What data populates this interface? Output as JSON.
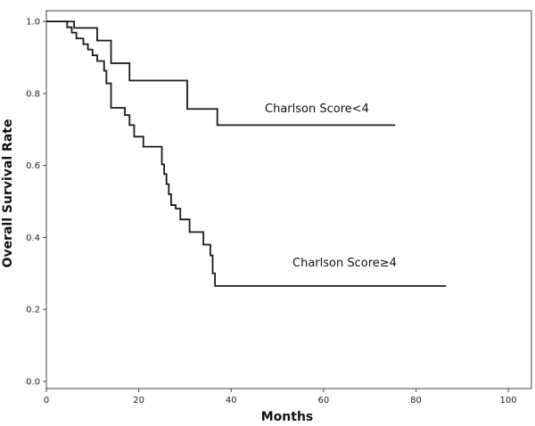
{
  "chart_data": {
    "type": "line",
    "step": true,
    "xlabel": "Months",
    "ylabel": "Overall Survival Rate",
    "xlim": [
      0,
      105
    ],
    "ylim": [
      -0.02,
      1.03
    ],
    "xticks": [
      0,
      20,
      40,
      60,
      80,
      100
    ],
    "xtick_labels": [
      "0",
      "20",
      "40",
      "60",
      "80",
      "100"
    ],
    "yticks": [
      0.0,
      0.2,
      0.4,
      0.6,
      0.8,
      1.0
    ],
    "ytick_labels": [
      "0.0",
      "0.2",
      "0.4",
      "0.6",
      "0.8",
      "1.0"
    ],
    "grid": false,
    "line_color": "#1a1a1a",
    "series": [
      {
        "name": "Charlson Score<4",
        "x": [
          0,
          6,
          11,
          14,
          18,
          30.5,
          37,
          75.5
        ],
        "y": [
          1.0,
          0.982,
          0.947,
          0.884,
          0.836,
          0.757,
          0.712,
          0.712
        ]
      },
      {
        "name": "Charlson Score≥4",
        "x": [
          0,
          4.5,
          5.5,
          6.5,
          8,
          9,
          10,
          11,
          12.5,
          13,
          14,
          17,
          18,
          19,
          21,
          25,
          25.5,
          26,
          26.5,
          27,
          28,
          29,
          31,
          34,
          35.5,
          36,
          36.5,
          86.5
        ],
        "y": [
          1.0,
          0.984,
          0.969,
          0.953,
          0.937,
          0.922,
          0.906,
          0.89,
          0.863,
          0.828,
          0.76,
          0.74,
          0.712,
          0.68,
          0.652,
          0.603,
          0.576,
          0.548,
          0.52,
          0.49,
          0.48,
          0.45,
          0.415,
          0.38,
          0.35,
          0.3,
          0.265,
          0.265
        ]
      }
    ]
  }
}
